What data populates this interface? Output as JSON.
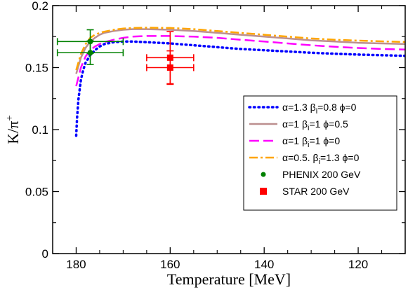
{
  "chart_data": {
    "type": "line",
    "xlabel": "Temperature [MeV]",
    "ylabel": {
      "main": "K/π",
      "sup": "+"
    },
    "xlim": [
      185,
      110
    ],
    "ylim": [
      0,
      0.2
    ],
    "x_reversed": true,
    "x_ticks": [
      180,
      160,
      140,
      120
    ],
    "y_ticks": [
      0,
      0.05,
      0.1,
      0.15,
      0.2
    ],
    "x_tick_labels": [
      "180",
      "160",
      "140",
      "120"
    ],
    "y_tick_labels": [
      "0",
      "0.05",
      "0.1",
      "0.15",
      "0.2"
    ],
    "grid": false,
    "legend_position": "right",
    "series": [
      {
        "name": {
          "pre": "α=1.3  β",
          "sub": "i",
          "post": "=0.8  ϕ=0"
        },
        "color": "#0000ff",
        "style": "dotted",
        "x": [
          180,
          179.8,
          179.5,
          179,
          178.5,
          178,
          177,
          176,
          175,
          174,
          172,
          170,
          168,
          165,
          160,
          155,
          150,
          145,
          140,
          135,
          130,
          125,
          120,
          115,
          110
        ],
        "y": [
          0.095,
          0.11,
          0.125,
          0.14,
          0.148,
          0.154,
          0.16,
          0.164,
          0.167,
          0.169,
          0.1705,
          0.171,
          0.171,
          0.1705,
          0.1695,
          0.168,
          0.1665,
          0.165,
          0.164,
          0.163,
          0.162,
          0.1612,
          0.1605,
          0.16,
          0.1595
        ]
      },
      {
        "name": {
          "pre": "α=1  β",
          "sub": "i",
          "post": "=1  ϕ=0.5"
        },
        "color": "#bc8f8f",
        "style": "solid",
        "x": [
          180,
          179,
          178,
          177,
          176,
          175,
          174,
          172,
          170,
          168,
          165,
          160,
          155,
          150,
          145,
          140,
          135,
          130,
          125,
          120,
          115,
          110
        ],
        "y": [
          0.145,
          0.158,
          0.166,
          0.171,
          0.174,
          0.1765,
          0.178,
          0.1795,
          0.1805,
          0.181,
          0.181,
          0.1805,
          0.1795,
          0.178,
          0.1765,
          0.175,
          0.1735,
          0.172,
          0.171,
          0.17,
          0.1695,
          0.169
        ]
      },
      {
        "name": {
          "pre": "α=1  β",
          "sub": "i",
          "post": "=1  ϕ=0"
        },
        "color": "#ff00ff",
        "style": "dashed",
        "x": [
          180,
          179,
          178,
          177,
          176,
          175,
          174,
          172,
          170,
          168,
          165,
          160,
          155,
          150,
          145,
          140,
          135,
          130,
          125,
          120,
          115,
          110
        ],
        "y": [
          0.135,
          0.15,
          0.159,
          0.164,
          0.167,
          0.169,
          0.1705,
          0.1725,
          0.174,
          0.175,
          0.1755,
          0.1755,
          0.175,
          0.174,
          0.1725,
          0.171,
          0.1695,
          0.168,
          0.1668,
          0.1658,
          0.165,
          0.1645
        ]
      },
      {
        "name": {
          "pre": "α=0.5.  β",
          "sub": "i",
          "post": "=1.3  ϕ=0"
        },
        "color": "#ffa500",
        "style": "dashdot",
        "x": [
          180,
          179,
          178,
          177,
          176,
          175,
          174,
          172,
          170,
          168,
          165,
          160,
          155,
          150,
          145,
          140,
          135,
          130,
          125,
          120,
          115,
          110
        ],
        "y": [
          0.148,
          0.161,
          0.169,
          0.174,
          0.1765,
          0.178,
          0.179,
          0.1805,
          0.1815,
          0.182,
          0.1822,
          0.182,
          0.181,
          0.1795,
          0.178,
          0.1765,
          0.175,
          0.1735,
          0.1725,
          0.1718,
          0.1712,
          0.1707
        ]
      }
    ],
    "data_series": [
      {
        "name": "PHENIX 200 GeV",
        "color": "#008000",
        "marker": "circle",
        "points": [
          {
            "x": 177,
            "y": 0.171,
            "xerr": 7,
            "yerr": 0.0095
          },
          {
            "x": 177,
            "y": 0.162,
            "xerr": 7,
            "yerr": 0.0095
          }
        ]
      },
      {
        "name": "STAR 200 GeV",
        "color": "#ff0000",
        "marker": "square",
        "points": [
          {
            "x": 160,
            "y": 0.158,
            "xerr": 5,
            "yerr": 0.021
          },
          {
            "x": 160,
            "y": 0.15,
            "xerr": 5,
            "yerr": 0.0135
          }
        ]
      }
    ]
  }
}
